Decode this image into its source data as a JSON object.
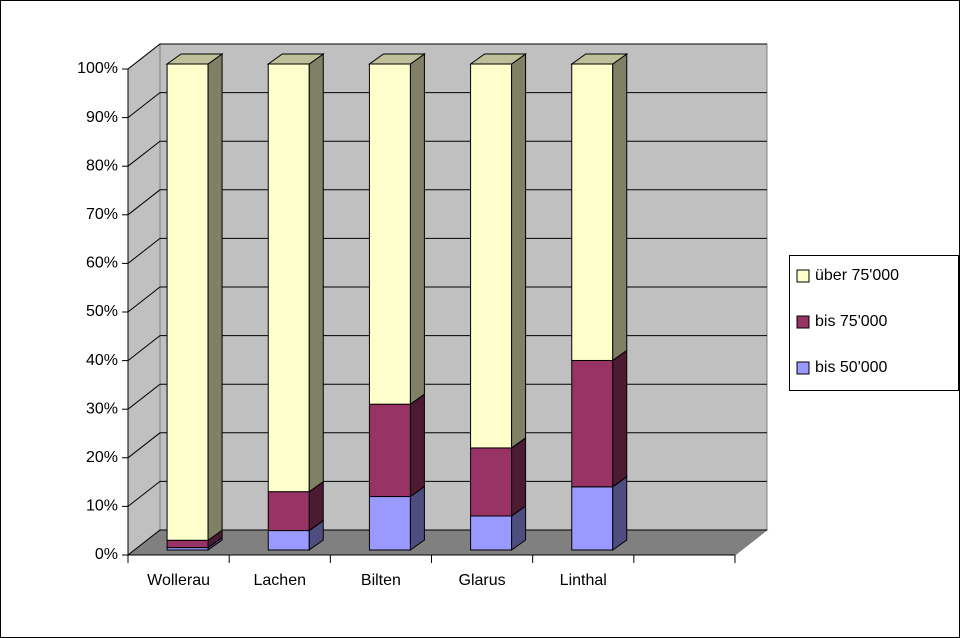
{
  "chart_data": {
    "type": "bar",
    "stacked": true,
    "percent": true,
    "three_d": true,
    "categories": [
      "Wollerau",
      "Lachen",
      "Bilten",
      "Glarus",
      "Linthal",
      null
    ],
    "series": [
      {
        "name": "bis 50'000",
        "color": "#9999ff",
        "values": [
          0.5,
          4,
          11,
          7,
          13,
          null
        ]
      },
      {
        "name": "bis 75'000",
        "color": "#993366",
        "values": [
          1.5,
          8,
          19,
          14,
          26,
          null
        ]
      },
      {
        "name": "über 75'000",
        "color": "#ffffcc",
        "values": [
          98,
          88,
          70,
          79,
          61,
          null
        ]
      }
    ],
    "ylim": [
      0,
      100
    ],
    "yticks": [
      {
        "value": 0,
        "label": "0%"
      },
      {
        "value": 10,
        "label": "10%"
      },
      {
        "value": 20,
        "label": "20%"
      },
      {
        "value": 30,
        "label": "30%"
      },
      {
        "value": 40,
        "label": "40%"
      },
      {
        "value": 50,
        "label": "50%"
      },
      {
        "value": 60,
        "label": "60%"
      },
      {
        "value": 70,
        "label": "70%"
      },
      {
        "value": 80,
        "label": "80%"
      },
      {
        "value": 90,
        "label": "90%"
      },
      {
        "value": 100,
        "label": "100%"
      }
    ],
    "grid": true,
    "legend": "right"
  }
}
